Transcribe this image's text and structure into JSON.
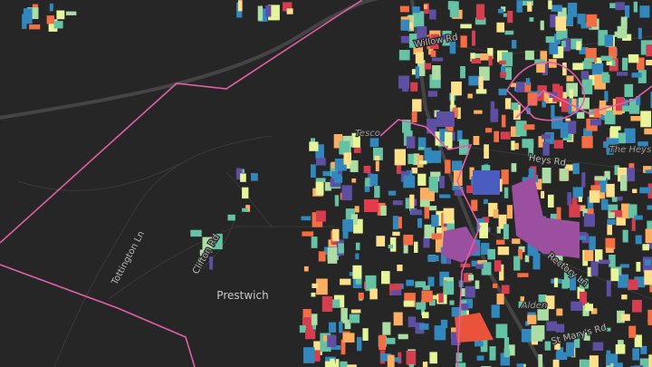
{
  "map": {
    "place": "Prestwich",
    "poi": "Tesco",
    "streets": [
      "Willow Rd",
      "Heys Rd",
      "The Heys",
      "Clifton Rd",
      "Tottington Ln",
      "Rectory Ln",
      "St Mary's Rd",
      "Alden"
    ]
  }
}
